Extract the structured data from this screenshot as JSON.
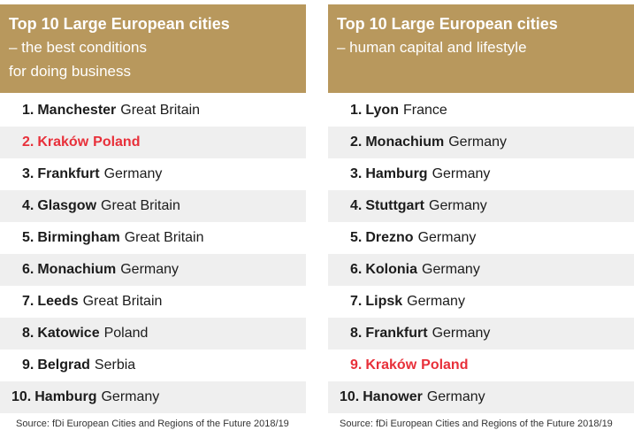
{
  "panels": [
    {
      "title": "Top 10 Large European cities",
      "subtitle": "– the best conditions\nfor doing business",
      "rows": [
        {
          "rank": "1.",
          "city": "Manchester",
          "country": "Great Britain",
          "highlight": false
        },
        {
          "rank": "2.",
          "city": "Kraków",
          "country": "Poland",
          "highlight": true
        },
        {
          "rank": "3.",
          "city": "Frankfurt",
          "country": "Germany",
          "highlight": false
        },
        {
          "rank": "4.",
          "city": "Glasgow",
          "country": "Great Britain",
          "highlight": false
        },
        {
          "rank": "5.",
          "city": "Birmingham",
          "country": "Great Britain",
          "highlight": false
        },
        {
          "rank": "6.",
          "city": "Monachium",
          "country": "Germany",
          "highlight": false
        },
        {
          "rank": "7.",
          "city": "Leeds",
          "country": "Great Britain",
          "highlight": false
        },
        {
          "rank": "8.",
          "city": "Katowice",
          "country": "Poland",
          "highlight": false
        },
        {
          "rank": "9.",
          "city": "Belgrad",
          "country": "Serbia",
          "highlight": false
        },
        {
          "rank": "10.",
          "city": "Hamburg",
          "country": "Germany",
          "highlight": false
        }
      ],
      "source": "Source: fDi European Cities and Regions of the Future 2018/19"
    },
    {
      "title": "Top 10 Large European cities",
      "subtitle": "– human capital and lifestyle",
      "rows": [
        {
          "rank": "1.",
          "city": "Lyon",
          "country": "France",
          "highlight": false
        },
        {
          "rank": "2.",
          "city": "Monachium",
          "country": "Germany",
          "highlight": false
        },
        {
          "rank": "3.",
          "city": "Hamburg",
          "country": "Germany",
          "highlight": false
        },
        {
          "rank": "4.",
          "city": "Stuttgart",
          "country": "Germany",
          "highlight": false
        },
        {
          "rank": "5.",
          "city": "Drezno",
          "country": "Germany",
          "highlight": false
        },
        {
          "rank": "6.",
          "city": "Kolonia",
          "country": "Germany",
          "highlight": false
        },
        {
          "rank": "7.",
          "city": "Lipsk",
          "country": "Germany",
          "highlight": false
        },
        {
          "rank": "8.",
          "city": "Frankfurt",
          "country": "Germany",
          "highlight": false
        },
        {
          "rank": "9.",
          "city": "Kraków",
          "country": "Poland",
          "highlight": true
        },
        {
          "rank": "10.",
          "city": "Hanower",
          "country": "Germany",
          "highlight": false
        }
      ],
      "source": "Source: fDi European Cities and Regions of the Future 2018/19"
    }
  ],
  "colors": {
    "header_bg": "#b8985d",
    "highlight": "#e8303a",
    "shaded_row": "#efefef"
  }
}
